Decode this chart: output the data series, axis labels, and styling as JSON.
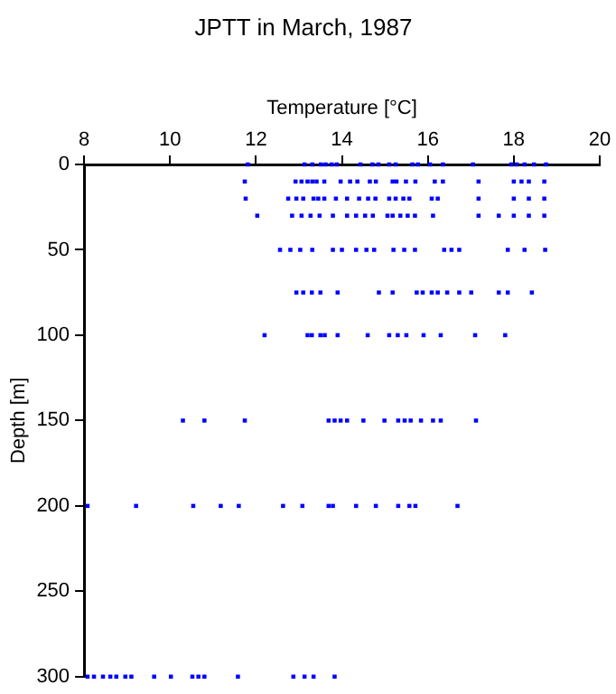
{
  "chart_data": {
    "type": "scatter",
    "title": "JPTT in March, 1987",
    "xlabel": "Temperature [°C]",
    "ylabel": "Depth [m]",
    "xlim": [
      8,
      20
    ],
    "xticks": [
      8,
      10,
      12,
      14,
      16,
      18,
      20
    ],
    "ylim": [
      300,
      0
    ],
    "yticks": [
      0,
      50,
      100,
      150,
      200,
      250,
      300
    ],
    "grid": false,
    "legend": false,
    "marker": "square",
    "series": [
      {
        "color": "#0000ff",
        "x": [
          11.81,
          13.13,
          13.31,
          13.51,
          13.62,
          13.76,
          13.88,
          14.43,
          14.71,
          14.85,
          15.1,
          15.25,
          15.64,
          15.77,
          16.05,
          16.35,
          17.05,
          17.94,
          18.07,
          18.25,
          18.47,
          18.75
        ],
        "values": [
          0,
          0,
          0,
          0,
          0,
          0,
          0,
          0,
          0,
          0,
          0,
          0,
          0,
          0,
          0,
          0,
          0,
          0,
          0,
          0,
          0,
          0
        ]
      },
      {
        "color": "#0000ff",
        "x": [
          11.74,
          12.92,
          13.06,
          13.2,
          13.31,
          13.41,
          13.59,
          13.97,
          14.19,
          14.36,
          14.65,
          14.79,
          15.18,
          15.27,
          15.49,
          15.71,
          16.16,
          16.35,
          17.18,
          18.0,
          18.18,
          18.35,
          18.71
        ],
        "values": [
          10,
          10,
          10,
          10,
          10,
          10,
          10,
          10,
          10,
          10,
          10,
          10,
          10,
          10,
          10,
          10,
          10,
          10,
          10,
          10,
          10,
          10,
          10
        ]
      },
      {
        "color": "#0000ff",
        "x": [
          11.76,
          12.75,
          12.94,
          13.1,
          13.34,
          13.45,
          13.59,
          13.86,
          14.12,
          14.4,
          14.61,
          14.78,
          15.1,
          15.25,
          15.43,
          15.57,
          16.09,
          16.23,
          17.18,
          18.0,
          18.35,
          18.71
        ],
        "values": [
          20,
          20,
          20,
          20,
          20,
          20,
          20,
          20,
          20,
          20,
          20,
          20,
          20,
          20,
          20,
          20,
          20,
          20,
          20,
          20,
          20,
          20
        ]
      },
      {
        "color": "#0000ff",
        "x": [
          12.03,
          12.84,
          13.06,
          13.27,
          13.48,
          13.79,
          14.12,
          14.33,
          14.54,
          14.72,
          15.06,
          15.18,
          15.36,
          15.53,
          15.7,
          16.12,
          17.18,
          17.65,
          18.0,
          18.35,
          18.71
        ],
        "values": [
          30,
          30,
          30,
          30,
          30,
          30,
          30,
          30,
          30,
          30,
          30,
          30,
          30,
          30,
          30,
          30,
          30,
          30,
          30,
          30,
          30
        ]
      },
      {
        "color": "#0000ff",
        "x": [
          12.56,
          12.8,
          13.03,
          13.31,
          13.79,
          14.0,
          14.33,
          14.57,
          14.75,
          15.2,
          15.45,
          15.7,
          16.38,
          16.55,
          16.73,
          17.86,
          18.25,
          18.73
        ],
        "values": [
          50,
          50,
          50,
          50,
          50,
          50,
          50,
          50,
          50,
          50,
          50,
          50,
          50,
          50,
          50,
          50,
          50,
          50
        ]
      },
      {
        "color": "#0000ff",
        "x": [
          12.94,
          13.1,
          13.3,
          13.5,
          13.9,
          14.86,
          15.18,
          15.74,
          15.88,
          16.09,
          16.23,
          16.45,
          16.73,
          17.01,
          17.65,
          17.86,
          18.42
        ],
        "values": [
          75,
          75,
          75,
          75,
          75,
          75,
          75,
          75,
          75,
          75,
          75,
          75,
          75,
          75,
          75,
          75,
          75
        ]
      },
      {
        "color": "#0000ff",
        "x": [
          12.2,
          13.2,
          13.3,
          13.5,
          13.6,
          13.9,
          14.6,
          15.1,
          15.3,
          15.5,
          15.9,
          16.3,
          17.1,
          17.8
        ],
        "values": [
          100,
          100,
          100,
          100,
          100,
          100,
          100,
          100,
          100,
          100,
          100,
          100,
          100,
          100
        ]
      },
      {
        "color": "#0000ff",
        "x": [
          10.3,
          10.8,
          11.74,
          13.69,
          13.83,
          13.97,
          14.12,
          14.5,
          14.99,
          15.31,
          15.46,
          15.6,
          15.84,
          16.12,
          16.3,
          17.12
        ],
        "values": [
          150,
          150,
          150,
          150,
          150,
          150,
          150,
          150,
          150,
          150,
          150,
          150,
          150,
          150,
          150,
          150
        ]
      },
      {
        "color": "#0000ff",
        "x": [
          8.08,
          9.21,
          10.54,
          11.18,
          11.6,
          12.63,
          13.08,
          13.69,
          13.79,
          14.33,
          14.79,
          15.31,
          15.57,
          15.71,
          16.69
        ],
        "values": [
          200,
          200,
          200,
          200,
          200,
          200,
          200,
          200,
          200,
          200,
          200,
          200,
          200,
          200,
          200
        ]
      },
      {
        "color": "#0000ff",
        "x": [
          8.08,
          8.23,
          8.44,
          8.61,
          8.75,
          8.96,
          9.1,
          9.63,
          10.02,
          10.52,
          10.66,
          10.8,
          11.58,
          12.87,
          13.13,
          13.34,
          13.83
        ],
        "values": [
          300,
          300,
          300,
          300,
          300,
          300,
          300,
          300,
          300,
          300,
          300,
          300,
          300,
          300,
          300,
          300,
          300
        ]
      }
    ]
  }
}
